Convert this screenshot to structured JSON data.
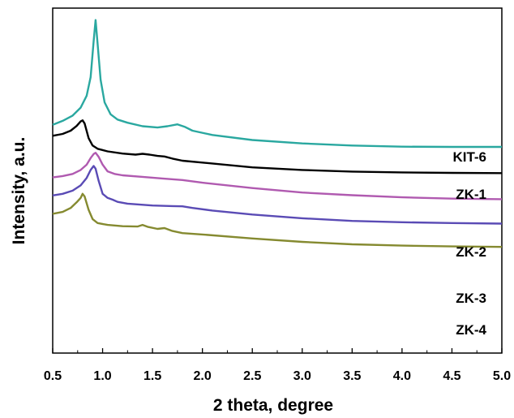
{
  "chart_data": {
    "type": "line",
    "title": "",
    "xlabel": "2 theta, degree",
    "ylabel": "Intensity, a.u.",
    "xlim": [
      0.5,
      5.0
    ],
    "x_ticks": [
      "0.5",
      "1.0",
      "1.5",
      "2.0",
      "2.5",
      "3.0",
      "3.5",
      "4.0",
      "4.5",
      "5.0"
    ],
    "y_ticks_shown": false,
    "legend": "inline labels at right end of each curve",
    "series": [
      {
        "name": "KIT-6",
        "color": "#2aa8a0",
        "points": [
          [
            0.5,
            0.86
          ],
          [
            0.6,
            0.875
          ],
          [
            0.7,
            0.895
          ],
          [
            0.78,
            0.925
          ],
          [
            0.84,
            0.97
          ],
          [
            0.88,
            1.04
          ],
          [
            0.91,
            1.175
          ],
          [
            0.93,
            1.255
          ],
          [
            0.95,
            1.165
          ],
          [
            0.98,
            1.03
          ],
          [
            1.02,
            0.945
          ],
          [
            1.08,
            0.9
          ],
          [
            1.15,
            0.88
          ],
          [
            1.25,
            0.868
          ],
          [
            1.4,
            0.855
          ],
          [
            1.55,
            0.85
          ],
          [
            1.65,
            0.855
          ],
          [
            1.75,
            0.862
          ],
          [
            1.82,
            0.853
          ],
          [
            1.9,
            0.838
          ],
          [
            2.1,
            0.822
          ],
          [
            2.5,
            0.803
          ],
          [
            3.0,
            0.79
          ],
          [
            3.5,
            0.782
          ],
          [
            4.0,
            0.778
          ],
          [
            4.5,
            0.777
          ],
          [
            5.0,
            0.777
          ]
        ]
      },
      {
        "name": "ZK-1",
        "color": "#000000",
        "points": [
          [
            0.5,
            0.819
          ],
          [
            0.6,
            0.826
          ],
          [
            0.68,
            0.838
          ],
          [
            0.74,
            0.856
          ],
          [
            0.78,
            0.873
          ],
          [
            0.8,
            0.877
          ],
          [
            0.82,
            0.865
          ],
          [
            0.86,
            0.81
          ],
          [
            0.9,
            0.782
          ],
          [
            0.95,
            0.77
          ],
          [
            1.05,
            0.76
          ],
          [
            1.2,
            0.752
          ],
          [
            1.33,
            0.748
          ],
          [
            1.4,
            0.751
          ],
          [
            1.47,
            0.748
          ],
          [
            1.55,
            0.743
          ],
          [
            1.62,
            0.741
          ],
          [
            1.7,
            0.733
          ],
          [
            1.8,
            0.725
          ],
          [
            2.0,
            0.718
          ],
          [
            2.5,
            0.7
          ],
          [
            3.0,
            0.69
          ],
          [
            3.5,
            0.684
          ],
          [
            4.0,
            0.681
          ],
          [
            4.5,
            0.679
          ],
          [
            5.0,
            0.678
          ]
        ]
      },
      {
        "name": "ZK-2",
        "color": "#b05ab0",
        "points": [
          [
            0.5,
            0.662
          ],
          [
            0.6,
            0.667
          ],
          [
            0.7,
            0.675
          ],
          [
            0.78,
            0.69
          ],
          [
            0.84,
            0.71
          ],
          [
            0.88,
            0.735
          ],
          [
            0.91,
            0.75
          ],
          [
            0.93,
            0.755
          ],
          [
            0.96,
            0.74
          ],
          [
            1.0,
            0.71
          ],
          [
            1.05,
            0.685
          ],
          [
            1.12,
            0.675
          ],
          [
            1.2,
            0.67
          ],
          [
            1.4,
            0.664
          ],
          [
            1.6,
            0.658
          ],
          [
            1.8,
            0.652
          ],
          [
            2.0,
            0.642
          ],
          [
            2.5,
            0.622
          ],
          [
            3.0,
            0.605
          ],
          [
            3.5,
            0.595
          ],
          [
            4.0,
            0.587
          ],
          [
            4.5,
            0.582
          ],
          [
            5.0,
            0.58
          ]
        ]
      },
      {
        "name": "ZK-3",
        "color": "#5a4bb5",
        "points": [
          [
            0.5,
            0.594
          ],
          [
            0.6,
            0.6
          ],
          [
            0.7,
            0.612
          ],
          [
            0.78,
            0.632
          ],
          [
            0.84,
            0.66
          ],
          [
            0.88,
            0.69
          ],
          [
            0.91,
            0.705
          ],
          [
            0.93,
            0.695
          ],
          [
            0.96,
            0.65
          ],
          [
            1.0,
            0.6
          ],
          [
            1.05,
            0.585
          ],
          [
            1.1,
            0.578
          ],
          [
            1.15,
            0.57
          ],
          [
            1.25,
            0.563
          ],
          [
            1.5,
            0.556
          ],
          [
            1.7,
            0.554
          ],
          [
            1.8,
            0.553
          ],
          [
            1.9,
            0.547
          ],
          [
            2.1,
            0.537
          ],
          [
            2.5,
            0.522
          ],
          [
            3.0,
            0.508
          ],
          [
            3.5,
            0.498
          ],
          [
            4.0,
            0.493
          ],
          [
            4.5,
            0.49
          ],
          [
            5.0,
            0.488
          ]
        ]
      },
      {
        "name": "ZK-4",
        "color": "#858a30",
        "points": [
          [
            0.5,
            0.525
          ],
          [
            0.6,
            0.532
          ],
          [
            0.68,
            0.547
          ],
          [
            0.74,
            0.568
          ],
          [
            0.78,
            0.585
          ],
          [
            0.8,
            0.6
          ],
          [
            0.82,
            0.59
          ],
          [
            0.86,
            0.54
          ],
          [
            0.9,
            0.505
          ],
          [
            0.95,
            0.49
          ],
          [
            1.05,
            0.483
          ],
          [
            1.2,
            0.478
          ],
          [
            1.35,
            0.477
          ],
          [
            1.4,
            0.483
          ],
          [
            1.45,
            0.476
          ],
          [
            1.55,
            0.468
          ],
          [
            1.62,
            0.471
          ],
          [
            1.7,
            0.46
          ],
          [
            1.8,
            0.452
          ],
          [
            2.0,
            0.447
          ],
          [
            2.5,
            0.432
          ],
          [
            3.0,
            0.419
          ],
          [
            3.5,
            0.41
          ],
          [
            4.0,
            0.405
          ],
          [
            4.5,
            0.402
          ],
          [
            5.0,
            0.4
          ]
        ]
      }
    ]
  }
}
